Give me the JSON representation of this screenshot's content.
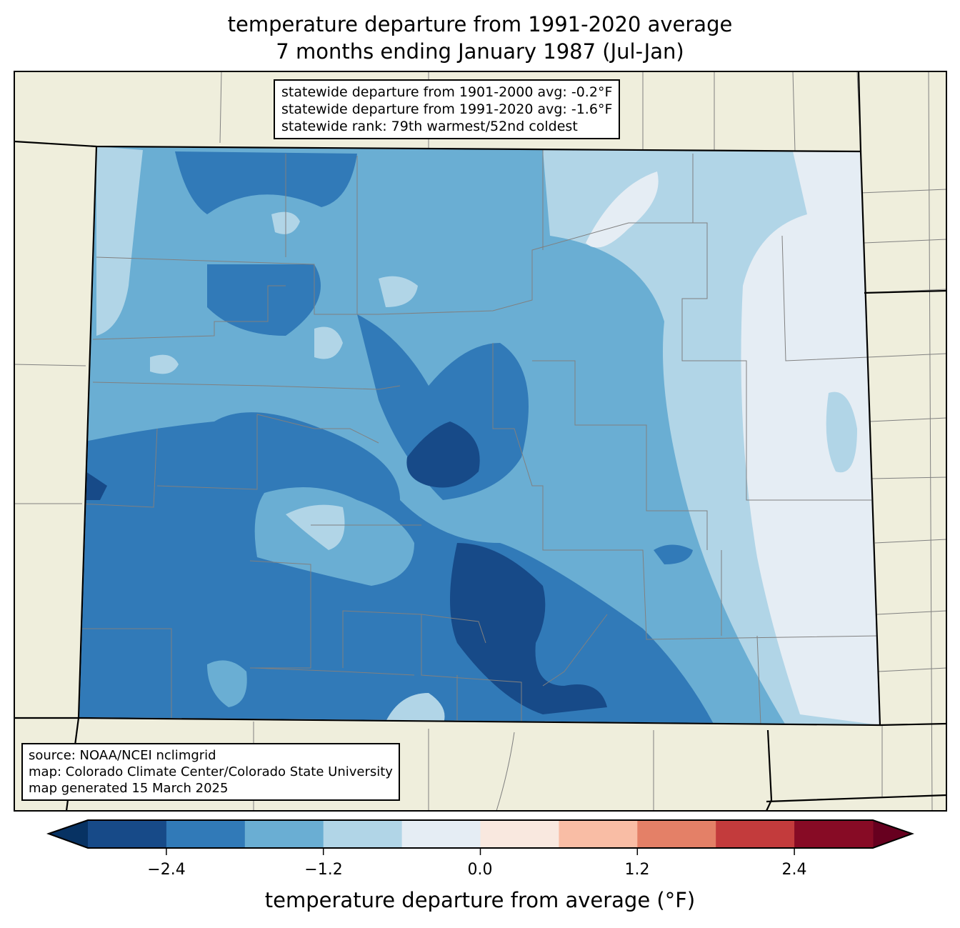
{
  "title": {
    "line1": "temperature departure from 1991-2020 average",
    "line2": "7 months ending January 1987 (Jul-Jan)"
  },
  "stats_box": {
    "line1": "statewide departure from 1901-2000 avg: -0.2°F",
    "line2": "statewide departure from 1991-2020 avg: -1.6°F",
    "line3": "statewide rank: 79th warmest/52nd coldest"
  },
  "source_box": {
    "line1": "source: NOAA/NCEI nclimgrid",
    "line2": "map: Colorado Climate Center/Colorado State University",
    "line3": "map generated 15 March 2025"
  },
  "colorbar": {
    "label": "temperature departure from average (°F)",
    "levels": [
      -3.0,
      -2.4,
      -1.8,
      -1.2,
      -0.6,
      0.0,
      0.6,
      1.2,
      1.8,
      2.4,
      3.0
    ],
    "ticks": [
      "−2.4",
      "−1.2",
      "0.0",
      "1.2",
      "2.4"
    ],
    "colors": [
      "#174a88",
      "#317ab8",
      "#6aaed3",
      "#b1d5e7",
      "#e5edf4",
      "#f9e8df",
      "#f9bda5",
      "#e48067",
      "#c33b3c",
      "#870b25"
    ],
    "extend_low_color": "#073263",
    "extend_high_color": "#67001f"
  },
  "map_colors": {
    "land": "#efeedc",
    "county_lines": "#808080",
    "state_lines": "#000000"
  }
}
